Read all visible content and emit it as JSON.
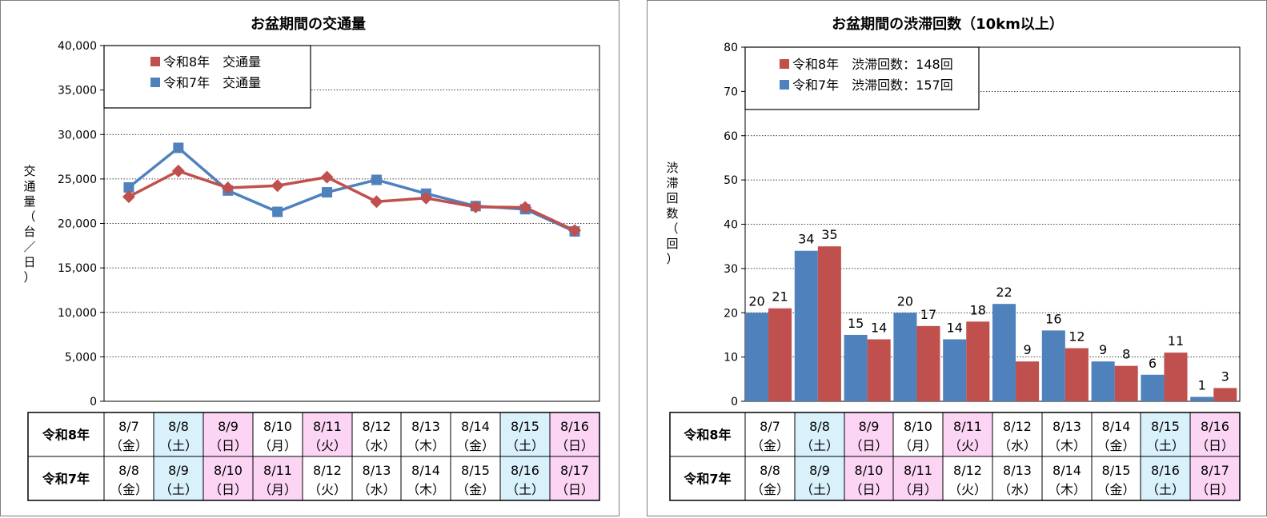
{
  "chart_data": [
    {
      "type": "line",
      "title": "お盆期間の交通量",
      "ylabel": "交通量（台／日）",
      "ylim": [
        0,
        40000
      ],
      "yticks": [
        "0",
        "5,000",
        "10,000",
        "15,000",
        "20,000",
        "25,000",
        "30,000",
        "35,000",
        "40,000"
      ],
      "grid": true,
      "legend_placement": "top-left",
      "series": [
        {
          "name": "令和8年　交通量",
          "color": "#c0504d",
          "marker": "diamond",
          "values": [
            23000,
            25900,
            24000,
            24250,
            25200,
            22450,
            22850,
            21850,
            21800,
            19200
          ]
        },
        {
          "name": "令和7年　交通量",
          "color": "#4f81bd",
          "marker": "square",
          "values": [
            24050,
            28500,
            23700,
            21300,
            23500,
            24900,
            23350,
            21950,
            21600,
            19100
          ]
        }
      ]
    },
    {
      "type": "bar",
      "title": "お盆期間の渋滞回数（10km以上）",
      "ylabel": "渋滞回数（回）",
      "ylim": [
        0,
        80
      ],
      "yticks": [
        "0",
        "10",
        "20",
        "30",
        "40",
        "50",
        "60",
        "70",
        "80"
      ],
      "grid": true,
      "legend_placement": "top-left",
      "series": [
        {
          "name": "令和7年　渋滞回数：157回",
          "color": "#4f81bd",
          "values": [
            20,
            34,
            15,
            20,
            14,
            22,
            16,
            9,
            6,
            1
          ]
        },
        {
          "name": "令和8年　渋滞回数：148回",
          "color": "#c0504d",
          "values": [
            21,
            35,
            14,
            17,
            18,
            9,
            12,
            8,
            11,
            3
          ]
        }
      ]
    }
  ],
  "date_table": {
    "row_labels": [
      "令和8年",
      "令和7年"
    ],
    "rows": [
      [
        {
          "date": "8/7",
          "day": "（金）",
          "bg": "#ffffff"
        },
        {
          "date": "8/8",
          "day": "（土）",
          "bg": "#d9f1fb"
        },
        {
          "date": "8/9",
          "day": "（日）",
          "bg": "#fbd5f3"
        },
        {
          "date": "8/10",
          "day": "（月）",
          "bg": "#ffffff"
        },
        {
          "date": "8/11",
          "day": "（火）",
          "bg": "#fbd5f3"
        },
        {
          "date": "8/12",
          "day": "（水）",
          "bg": "#ffffff"
        },
        {
          "date": "8/13",
          "day": "（木）",
          "bg": "#ffffff"
        },
        {
          "date": "8/14",
          "day": "（金）",
          "bg": "#ffffff"
        },
        {
          "date": "8/15",
          "day": "（土）",
          "bg": "#d9f1fb"
        },
        {
          "date": "8/16",
          "day": "（日）",
          "bg": "#fbd5f3"
        }
      ],
      [
        {
          "date": "8/8",
          "day": "（金）",
          "bg": "#ffffff"
        },
        {
          "date": "8/9",
          "day": "（土）",
          "bg": "#d9f1fb"
        },
        {
          "date": "8/10",
          "day": "（日）",
          "bg": "#fbd5f3"
        },
        {
          "date": "8/11",
          "day": "（月）",
          "bg": "#fbd5f3"
        },
        {
          "date": "8/12",
          "day": "（火）",
          "bg": "#ffffff"
        },
        {
          "date": "8/13",
          "day": "（水）",
          "bg": "#ffffff"
        },
        {
          "date": "8/14",
          "day": "（木）",
          "bg": "#ffffff"
        },
        {
          "date": "8/15",
          "day": "（金）",
          "bg": "#ffffff"
        },
        {
          "date": "8/16",
          "day": "（土）",
          "bg": "#d9f1fb"
        },
        {
          "date": "8/17",
          "day": "（日）",
          "bg": "#fbd5f3"
        }
      ]
    ]
  }
}
